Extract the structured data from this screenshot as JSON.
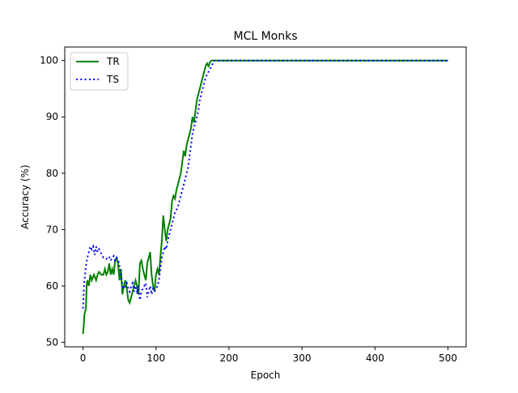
{
  "chart_data": {
    "type": "line",
    "title": "MCL Monks",
    "xlabel": "Epoch",
    "ylabel": "Accuracy (%)",
    "xlim": [
      -25,
      525
    ],
    "ylim": [
      49.2,
      102.4
    ],
    "xticks": [
      0,
      100,
      200,
      300,
      400,
      500
    ],
    "yticks": [
      50,
      60,
      70,
      80,
      90,
      100
    ],
    "grid": false,
    "legend": "top-left",
    "series": [
      {
        "name": "TR",
        "color": "#008000",
        "style": "solid",
        "points": [
          [
            0,
            51.5
          ],
          [
            1,
            53
          ],
          [
            2,
            55
          ],
          [
            4,
            56
          ],
          [
            5,
            60
          ],
          [
            6,
            61
          ],
          [
            8,
            60
          ],
          [
            10,
            62
          ],
          [
            12,
            61
          ],
          [
            15,
            62
          ],
          [
            18,
            61
          ],
          [
            20,
            62
          ],
          [
            22,
            62.5
          ],
          [
            25,
            62
          ],
          [
            28,
            62
          ],
          [
            30,
            63
          ],
          [
            32,
            62
          ],
          [
            34,
            62.5
          ],
          [
            36,
            64
          ],
          [
            38,
            62
          ],
          [
            40,
            63
          ],
          [
            42,
            62
          ],
          [
            44,
            64.5
          ],
          [
            46,
            65
          ],
          [
            48,
            64
          ],
          [
            50,
            61
          ],
          [
            52,
            63
          ],
          [
            54,
            58.5
          ],
          [
            56,
            60
          ],
          [
            58,
            61
          ],
          [
            60,
            59.5
          ],
          [
            62,
            57.5
          ],
          [
            64,
            57
          ],
          [
            66,
            58
          ],
          [
            68,
            59
          ],
          [
            70,
            60
          ],
          [
            72,
            61
          ],
          [
            74,
            60
          ],
          [
            76,
            58.5
          ],
          [
            78,
            64
          ],
          [
            80,
            64.5
          ],
          [
            82,
            63
          ],
          [
            84,
            62
          ],
          [
            86,
            61
          ],
          [
            88,
            64
          ],
          [
            90,
            65
          ],
          [
            92,
            66
          ],
          [
            94,
            62
          ],
          [
            96,
            60
          ],
          [
            98,
            59
          ],
          [
            100,
            62
          ],
          [
            102,
            63
          ],
          [
            104,
            62
          ],
          [
            106,
            65
          ],
          [
            108,
            68
          ],
          [
            110,
            72.5
          ],
          [
            112,
            70
          ],
          [
            114,
            68
          ],
          [
            116,
            70
          ],
          [
            118,
            71
          ],
          [
            120,
            72
          ],
          [
            122,
            75
          ],
          [
            124,
            76
          ],
          [
            126,
            75.5
          ],
          [
            128,
            77
          ],
          [
            130,
            78
          ],
          [
            132,
            79
          ],
          [
            134,
            80
          ],
          [
            136,
            82
          ],
          [
            138,
            84
          ],
          [
            140,
            83
          ],
          [
            142,
            85
          ],
          [
            144,
            86
          ],
          [
            146,
            87
          ],
          [
            148,
            88
          ],
          [
            150,
            90
          ],
          [
            152,
            89
          ],
          [
            154,
            91
          ],
          [
            156,
            93
          ],
          [
            158,
            94
          ],
          [
            160,
            95
          ],
          [
            162,
            96
          ],
          [
            164,
            97
          ],
          [
            166,
            98
          ],
          [
            168,
            99
          ],
          [
            170,
            99.5
          ],
          [
            172,
            99
          ],
          [
            174,
            99.7
          ],
          [
            176,
            100
          ],
          [
            180,
            100
          ],
          [
            200,
            100
          ],
          [
            300,
            100
          ],
          [
            400,
            100
          ],
          [
            500,
            100
          ]
        ]
      },
      {
        "name": "TS",
        "color": "#0000ff",
        "style": "dotted",
        "points": [
          [
            0,
            56
          ],
          [
            1,
            59
          ],
          [
            2,
            61
          ],
          [
            4,
            63.5
          ],
          [
            6,
            65
          ],
          [
            8,
            66
          ],
          [
            10,
            67
          ],
          [
            12,
            66.5
          ],
          [
            14,
            67
          ],
          [
            16,
            65.5
          ],
          [
            18,
            67
          ],
          [
            20,
            66
          ],
          [
            22,
            66.5
          ],
          [
            24,
            66
          ],
          [
            26,
            65.5
          ],
          [
            28,
            65
          ],
          [
            30,
            65
          ],
          [
            32,
            64.8
          ],
          [
            34,
            65
          ],
          [
            36,
            65.2
          ],
          [
            38,
            64.5
          ],
          [
            40,
            65
          ],
          [
            42,
            65.3
          ],
          [
            44,
            64.5
          ],
          [
            46,
            65
          ],
          [
            48,
            64.8
          ],
          [
            50,
            63.5
          ],
          [
            52,
            62
          ],
          [
            54,
            60
          ],
          [
            56,
            59.5
          ],
          [
            58,
            60
          ],
          [
            60,
            60.5
          ],
          [
            62,
            59.5
          ],
          [
            64,
            59
          ],
          [
            66,
            60
          ],
          [
            68,
            60.5
          ],
          [
            70,
            59
          ],
          [
            72,
            60
          ],
          [
            74,
            59
          ],
          [
            76,
            60
          ],
          [
            78,
            57.5
          ],
          [
            80,
            59
          ],
          [
            82,
            59.5
          ],
          [
            84,
            60
          ],
          [
            86,
            60.5
          ],
          [
            88,
            58
          ],
          [
            90,
            59
          ],
          [
            92,
            60
          ],
          [
            94,
            58.5
          ],
          [
            96,
            59.5
          ],
          [
            98,
            59
          ],
          [
            100,
            59.5
          ],
          [
            102,
            60
          ],
          [
            104,
            61
          ],
          [
            106,
            63
          ],
          [
            108,
            65
          ],
          [
            110,
            66
          ],
          [
            112,
            67
          ],
          [
            114,
            66.5
          ],
          [
            116,
            68
          ],
          [
            118,
            69
          ],
          [
            120,
            70
          ],
          [
            122,
            71
          ],
          [
            124,
            72
          ],
          [
            126,
            73
          ],
          [
            128,
            73.5
          ],
          [
            130,
            74
          ],
          [
            132,
            75
          ],
          [
            134,
            76
          ],
          [
            136,
            77
          ],
          [
            138,
            78
          ],
          [
            140,
            79
          ],
          [
            142,
            80
          ],
          [
            144,
            81
          ],
          [
            146,
            83
          ],
          [
            148,
            85
          ],
          [
            150,
            87
          ],
          [
            152,
            88
          ],
          [
            154,
            89
          ],
          [
            156,
            90
          ],
          [
            158,
            91
          ],
          [
            160,
            93
          ],
          [
            162,
            94
          ],
          [
            164,
            95
          ],
          [
            166,
            96
          ],
          [
            168,
            97
          ],
          [
            170,
            97.5
          ],
          [
            172,
            98
          ],
          [
            174,
            98.5
          ],
          [
            176,
            99
          ],
          [
            178,
            99.5
          ],
          [
            180,
            100
          ],
          [
            200,
            100
          ],
          [
            300,
            100
          ],
          [
            400,
            100
          ],
          [
            500,
            100
          ]
        ]
      }
    ]
  }
}
